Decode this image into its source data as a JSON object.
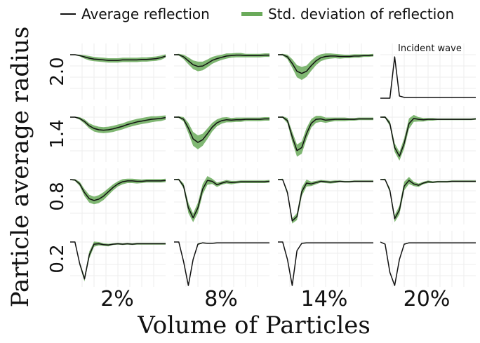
{
  "chart_data": {
    "type": "line",
    "layout": "small-multiples grid 4x4",
    "xlabel": "Volume of Particles",
    "ylabel": "Particle average radius",
    "columns": [
      "2%",
      "8%",
      "14%",
      "20%"
    ],
    "rows": [
      "2.0",
      "1.4",
      "0.8",
      "0.2"
    ],
    "legend": {
      "placement": "top",
      "entries": [
        {
          "label": "Average reflection",
          "color": "#111111",
          "kind": "line"
        },
        {
          "label": "Std. deviation of  reflection",
          "color": "#6aaa5a",
          "kind": "band"
        }
      ]
    },
    "grid": true,
    "annotation": {
      "text": "Incident wave",
      "panel": "2.0 / 20%"
    },
    "x": [
      0,
      0.05,
      0.1,
      0.15,
      0.2,
      0.25,
      0.3,
      0.35,
      0.4,
      0.45,
      0.5,
      0.55,
      0.6,
      0.65,
      0.7,
      0.75,
      0.8,
      0.85,
      0.9,
      0.95,
      1
    ],
    "panels": [
      {
        "row": "2.0",
        "col": "2%",
        "mean": [
          1.0,
          1.0,
          0.98,
          0.95,
          0.92,
          0.9,
          0.89,
          0.88,
          0.87,
          0.87,
          0.87,
          0.88,
          0.88,
          0.88,
          0.88,
          0.89,
          0.89,
          0.9,
          0.91,
          0.93,
          0.97
        ],
        "std": [
          0.01,
          0.01,
          0.02,
          0.04,
          0.05,
          0.05,
          0.05,
          0.05,
          0.05,
          0.05,
          0.05,
          0.05,
          0.05,
          0.05,
          0.05,
          0.05,
          0.05,
          0.05,
          0.05,
          0.05,
          0.04
        ]
      },
      {
        "row": "2.0",
        "col": "8%",
        "mean": [
          1.0,
          1.0,
          0.95,
          0.86,
          0.77,
          0.73,
          0.74,
          0.8,
          0.87,
          0.91,
          0.94,
          0.97,
          0.98,
          0.99,
          0.99,
          0.98,
          0.98,
          0.98,
          0.98,
          0.99,
          0.99
        ],
        "std": [
          0.01,
          0.02,
          0.05,
          0.08,
          0.1,
          0.11,
          0.1,
          0.09,
          0.08,
          0.07,
          0.06,
          0.06,
          0.05,
          0.05,
          0.05,
          0.04,
          0.04,
          0.04,
          0.04,
          0.04,
          0.04
        ]
      },
      {
        "row": "2.0",
        "col": "14%",
        "mean": [
          1.0,
          1.0,
          0.95,
          0.8,
          0.62,
          0.57,
          0.62,
          0.75,
          0.86,
          0.93,
          0.96,
          0.97,
          0.97,
          0.96,
          0.96,
          0.96,
          0.97,
          0.97,
          0.98,
          0.98,
          0.99
        ],
        "std": [
          0.01,
          0.02,
          0.05,
          0.1,
          0.14,
          0.15,
          0.13,
          0.12,
          0.1,
          0.08,
          0.07,
          0.06,
          0.05,
          0.05,
          0.04,
          0.04,
          0.04,
          0.04,
          0.03,
          0.03,
          0.03
        ]
      },
      {
        "row": "2.0",
        "col": "20%",
        "incident": true,
        "mean": [
          0.0,
          0.0,
          0.0,
          0.95,
          0.05,
          0.02,
          0.02,
          0.02,
          0.02,
          0.02,
          0.02,
          0.02,
          0.02,
          0.02,
          0.02,
          0.02,
          0.02,
          0.02,
          0.02,
          0.02,
          0.02
        ],
        "std": [
          0,
          0,
          0,
          0,
          0,
          0,
          0,
          0,
          0,
          0,
          0,
          0,
          0,
          0,
          0,
          0,
          0,
          0,
          0,
          0,
          0
        ]
      },
      {
        "row": "1.4",
        "col": "2%",
        "mean": [
          1.0,
          1.0,
          0.97,
          0.9,
          0.8,
          0.74,
          0.71,
          0.7,
          0.71,
          0.73,
          0.76,
          0.79,
          0.83,
          0.86,
          0.89,
          0.91,
          0.93,
          0.95,
          0.96,
          0.97,
          0.99
        ],
        "std": [
          0.01,
          0.01,
          0.03,
          0.05,
          0.06,
          0.07,
          0.07,
          0.07,
          0.07,
          0.07,
          0.07,
          0.07,
          0.07,
          0.07,
          0.07,
          0.07,
          0.07,
          0.07,
          0.06,
          0.06,
          0.05
        ]
      },
      {
        "row": "1.4",
        "col": "8%",
        "mean": [
          1.0,
          1.0,
          0.95,
          0.75,
          0.5,
          0.42,
          0.48,
          0.62,
          0.77,
          0.87,
          0.92,
          0.94,
          0.93,
          0.94,
          0.94,
          0.95,
          0.95,
          0.95,
          0.95,
          0.96,
          0.96
        ],
        "std": [
          0.01,
          0.02,
          0.05,
          0.12,
          0.16,
          0.16,
          0.14,
          0.12,
          0.1,
          0.08,
          0.07,
          0.06,
          0.05,
          0.05,
          0.05,
          0.04,
          0.04,
          0.04,
          0.04,
          0.04,
          0.04
        ]
      },
      {
        "row": "1.4",
        "col": "14%",
        "mean": [
          1.0,
          1.0,
          0.92,
          0.55,
          0.23,
          0.3,
          0.62,
          0.86,
          0.95,
          0.96,
          0.93,
          0.94,
          0.95,
          0.95,
          0.95,
          0.95,
          0.95,
          0.96,
          0.96,
          0.96,
          0.96
        ],
        "std": [
          0.01,
          0.02,
          0.06,
          0.12,
          0.14,
          0.14,
          0.13,
          0.1,
          0.08,
          0.07,
          0.06,
          0.05,
          0.04,
          0.04,
          0.04,
          0.03,
          0.03,
          0.03,
          0.03,
          0.03,
          0.03
        ]
      },
      {
        "row": "1.4",
        "col": "20%",
        "mean": [
          1.0,
          1.0,
          0.85,
          0.3,
          0.1,
          0.4,
          0.85,
          0.97,
          0.95,
          0.94,
          0.95,
          0.95,
          0.95,
          0.95,
          0.95,
          0.95,
          0.95,
          0.95,
          0.95,
          0.95,
          0.96
        ],
        "std": [
          0.01,
          0.02,
          0.06,
          0.1,
          0.1,
          0.12,
          0.12,
          0.08,
          0.05,
          0.04,
          0.03,
          0.03,
          0.02,
          0.02,
          0.02,
          0.02,
          0.02,
          0.02,
          0.02,
          0.02,
          0.02
        ]
      },
      {
        "row": "0.8",
        "col": "2%",
        "mean": [
          1.0,
          0.99,
          0.9,
          0.7,
          0.56,
          0.52,
          0.55,
          0.62,
          0.72,
          0.82,
          0.9,
          0.95,
          0.97,
          0.97,
          0.96,
          0.96,
          0.97,
          0.97,
          0.97,
          0.97,
          0.98
        ],
        "std": [
          0.01,
          0.02,
          0.05,
          0.08,
          0.09,
          0.09,
          0.09,
          0.09,
          0.08,
          0.07,
          0.06,
          0.06,
          0.05,
          0.05,
          0.05,
          0.04,
          0.04,
          0.04,
          0.04,
          0.04,
          0.04
        ]
      },
      {
        "row": "0.8",
        "col": "8%",
        "mean": [
          1.0,
          1.0,
          0.85,
          0.35,
          0.12,
          0.35,
          0.78,
          0.98,
          0.96,
          0.88,
          0.92,
          0.95,
          0.93,
          0.94,
          0.95,
          0.95,
          0.95,
          0.95,
          0.95,
          0.95,
          0.96
        ],
        "std": [
          0.01,
          0.02,
          0.06,
          0.12,
          0.1,
          0.12,
          0.12,
          0.1,
          0.06,
          0.05,
          0.04,
          0.04,
          0.04,
          0.03,
          0.03,
          0.03,
          0.03,
          0.03,
          0.03,
          0.03,
          0.03
        ]
      },
      {
        "row": "0.8",
        "col": "14%",
        "mean": [
          1.0,
          1.0,
          0.7,
          0.05,
          0.15,
          0.72,
          0.92,
          0.9,
          0.93,
          0.96,
          0.95,
          0.94,
          0.95,
          0.96,
          0.95,
          0.95,
          0.96,
          0.96,
          0.96,
          0.96,
          0.96
        ],
        "std": [
          0.01,
          0.02,
          0.05,
          0.06,
          0.08,
          0.1,
          0.08,
          0.05,
          0.04,
          0.03,
          0.03,
          0.03,
          0.03,
          0.02,
          0.02,
          0.02,
          0.02,
          0.02,
          0.02,
          0.02,
          0.02
        ]
      },
      {
        "row": "0.8",
        "col": "20%",
        "mean": [
          1.0,
          1.0,
          0.75,
          0.1,
          0.3,
          0.85,
          0.98,
          0.9,
          0.87,
          0.92,
          0.95,
          0.94,
          0.95,
          0.95,
          0.95,
          0.96,
          0.96,
          0.96,
          0.96,
          0.96,
          0.96
        ],
        "std": [
          0.01,
          0.02,
          0.05,
          0.08,
          0.1,
          0.1,
          0.08,
          0.05,
          0.04,
          0.03,
          0.03,
          0.02,
          0.02,
          0.02,
          0.02,
          0.02,
          0.02,
          0.02,
          0.02,
          0.02,
          0.02
        ]
      },
      {
        "row": "0.2",
        "col": "2%",
        "mean": [
          1.0,
          1.0,
          0.5,
          0.15,
          0.7,
          0.95,
          0.96,
          0.94,
          0.93,
          0.95,
          0.96,
          0.95,
          0.96,
          0.95,
          0.96,
          0.96,
          0.96,
          0.96,
          0.96,
          0.96,
          0.96
        ],
        "std": [
          0.0,
          0.01,
          0.04,
          0.06,
          0.08,
          0.06,
          0.04,
          0.03,
          0.03,
          0.02,
          0.02,
          0.02,
          0.02,
          0.02,
          0.02,
          0.02,
          0.02,
          0.02,
          0.02,
          0.02,
          0.02
        ]
      },
      {
        "row": "0.2",
        "col": "8%",
        "mean": [
          1.0,
          1.0,
          0.55,
          0.0,
          0.6,
          0.95,
          0.98,
          0.97,
          0.97,
          0.98,
          0.98,
          0.98,
          0.98,
          0.98,
          0.98,
          0.98,
          0.98,
          0.98,
          0.98,
          0.98,
          0.98
        ],
        "std": [
          0,
          0,
          0.01,
          0.01,
          0.02,
          0.02,
          0.01,
          0.01,
          0.01,
          0.01,
          0.01,
          0.01,
          0.01,
          0.01,
          0.01,
          0.01,
          0.01,
          0.01,
          0.01,
          0.01,
          0.01
        ]
      },
      {
        "row": "0.2",
        "col": "14%",
        "mean": [
          1.0,
          1.0,
          0.6,
          0.0,
          0.8,
          0.97,
          0.98,
          0.98,
          0.98,
          0.98,
          0.98,
          0.98,
          0.98,
          0.98,
          0.98,
          0.98,
          0.98,
          0.98,
          0.98,
          0.98,
          0.98
        ],
        "std": [
          0,
          0,
          0.01,
          0.01,
          0.01,
          0.01,
          0.01,
          0.01,
          0.01,
          0.01,
          0.01,
          0.01,
          0.01,
          0.01,
          0.01,
          0.01,
          0.01,
          0.01,
          0.01,
          0.01,
          0.01
        ]
      },
      {
        "row": "0.2",
        "col": "20%",
        "mean": [
          1.0,
          0.95,
          0.3,
          0.0,
          0.6,
          0.95,
          0.98,
          0.98,
          0.98,
          0.98,
          0.98,
          0.98,
          0.98,
          0.98,
          0.98,
          0.98,
          0.98,
          0.98,
          0.98,
          0.98,
          0.98
        ],
        "std": [
          0,
          0,
          0.01,
          0.01,
          0.01,
          0.01,
          0.01,
          0.01,
          0.01,
          0.01,
          0.01,
          0.01,
          0.01,
          0.01,
          0.01,
          0.01,
          0.01,
          0.01,
          0.01,
          0.01,
          0.01
        ]
      }
    ]
  }
}
